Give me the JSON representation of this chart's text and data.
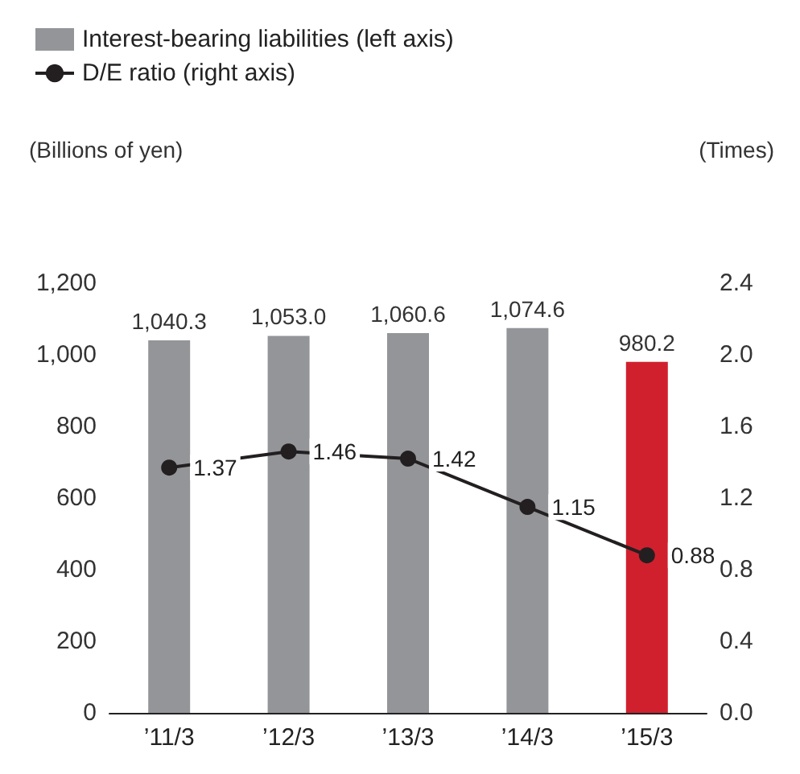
{
  "chart_data": {
    "type": "bar",
    "categories": [
      "’11/3",
      "’12/3",
      "’13/3",
      "’14/3",
      "’15/3"
    ],
    "ylabel": "(Billions of yen)",
    "y2label": "(Times)",
    "ylim": [
      0,
      1200
    ],
    "yticks": [
      0,
      200,
      400,
      600,
      800,
      {
        "value": 1000,
        "label": "1,000"
      },
      {
        "value": 1200,
        "label": "1,200"
      }
    ],
    "y2lim": [
      0,
      2.4
    ],
    "y2ticks": [
      {
        "value": 0,
        "label": "0.0"
      },
      0.4,
      0.8,
      1.2,
      1.6,
      {
        "value": 2,
        "label": "2.0"
      },
      2.4
    ],
    "grid": false,
    "legend": "top left",
    "marker": "circle",
    "line_style": "solid",
    "series": [
      {
        "name": "Interest-bearing liabilities (left axis)",
        "color": "#939598",
        "colors": [
          "#939598",
          "#939598",
          "#939598",
          "#939598",
          "#d0202e"
        ],
        "values": [
          1040.3,
          1053.0,
          1060.6,
          1074.6,
          980.2
        ],
        "value_labels": [
          "1,040.3",
          "1,053.0",
          "1,060.6",
          "1,074.6",
          "980.2"
        ]
      },
      {
        "name": "D/E ratio (right axis)",
        "type": "line",
        "axis": "y2",
        "color": "#231f20",
        "values": [
          1.37,
          1.46,
          1.42,
          1.15,
          0.88
        ],
        "value_labels": [
          "1.37",
          "1.46",
          "1.42",
          "1.15",
          "0.88"
        ]
      }
    ]
  }
}
